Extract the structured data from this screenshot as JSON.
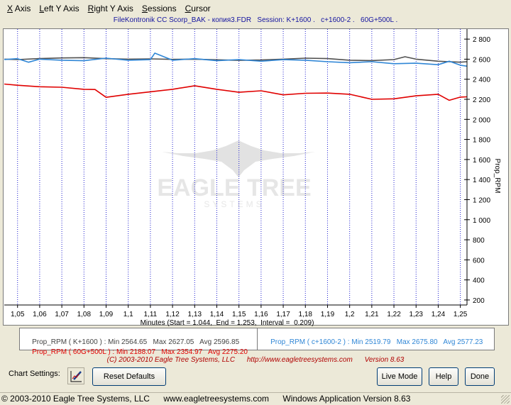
{
  "menu": [
    {
      "label": "X Axis",
      "accel": "X",
      "rest": " Axis"
    },
    {
      "label": "Left Y Axis",
      "accel": "L",
      "rest": "eft Y Axis"
    },
    {
      "label": "Right Y Axis",
      "accel": "R",
      "rest": "ight Y Axis"
    },
    {
      "label": "Sessions",
      "accel": "S",
      "rest": "essions"
    },
    {
      "label": "Cursor",
      "accel": "C",
      "rest": "ursor"
    }
  ],
  "title": "FileKontronik CC Scorp_BAK - копия3.FDR   Session: K+1600 .   c+1600-2 .   60G+500L .",
  "watermark": {
    "line1": "EAGLE TREE",
    "line2": "SYSTEMS"
  },
  "chart_data": {
    "type": "line",
    "title": "FileKontronik CC Scorp_BAK - копия3.FDR   Session: K+1600 .   c+1600-2 .   60G+500L .",
    "xlabel": "Minutes (Start = 1.044,  End = 1.253,  Interval =  0.209)",
    "ylabel": "Prop_RPM",
    "xlim": [
      1.044,
      1.253
    ],
    "ylim": [
      150,
      2900
    ],
    "x_ticks": [
      1.05,
      1.06,
      1.07,
      1.08,
      1.09,
      1.1,
      1.11,
      1.12,
      1.13,
      1.14,
      1.15,
      1.16,
      1.17,
      1.18,
      1.19,
      1.2,
      1.21,
      1.22,
      1.23,
      1.24,
      1.25
    ],
    "x_tick_labels": [
      "1,05",
      "1,06",
      "1,07",
      "1,08",
      "1,09",
      "1,1",
      "1,11",
      "1,12",
      "1,13",
      "1,14",
      "1,15",
      "1,16",
      "1,17",
      "1,18",
      "1,19",
      "1,2",
      "1,21",
      "1,22",
      "1,23",
      "1,24",
      "1,25"
    ],
    "y_ticks": [
      200,
      400,
      600,
      800,
      1000,
      1200,
      1400,
      1600,
      1800,
      2000,
      2200,
      2400,
      2600,
      2800
    ],
    "y_tick_labels": [
      "200",
      "400",
      "600",
      "800",
      "1 000",
      "1 200",
      "1 400",
      "1 600",
      "1 800",
      "2 000",
      "2 200",
      "2 400",
      "2 600",
      "2 800"
    ],
    "y_axis_side": "right",
    "grid": "vertical dotted blue",
    "series": [
      {
        "name": "Prop_RPM ( K+1600 )",
        "color": "#505050",
        "x": [
          1.044,
          1.05,
          1.06,
          1.07,
          1.08,
          1.09,
          1.1,
          1.11,
          1.12,
          1.13,
          1.14,
          1.15,
          1.16,
          1.17,
          1.18,
          1.19,
          1.2,
          1.21,
          1.22,
          1.225,
          1.23,
          1.24,
          1.25,
          1.253
        ],
        "y": [
          2600,
          2596,
          2606,
          2612,
          2615,
          2605,
          2600,
          2603,
          2598,
          2600,
          2594,
          2588,
          2592,
          2600,
          2610,
          2606,
          2590,
          2586,
          2596,
          2624,
          2600,
          2580,
          2570,
          2575
        ]
      },
      {
        "name": "Prop_RPM ( c+1600-2 )",
        "color": "#2f86d6",
        "x": [
          1.044,
          1.05,
          1.055,
          1.06,
          1.07,
          1.08,
          1.09,
          1.1,
          1.11,
          1.112,
          1.12,
          1.13,
          1.14,
          1.15,
          1.16,
          1.17,
          1.18,
          1.19,
          1.2,
          1.21,
          1.22,
          1.23,
          1.24,
          1.245,
          1.25,
          1.253
        ],
        "y": [
          2597,
          2605,
          2570,
          2600,
          2590,
          2585,
          2610,
          2590,
          2595,
          2660,
          2590,
          2605,
          2585,
          2596,
          2580,
          2595,
          2590,
          2575,
          2565,
          2575,
          2555,
          2560,
          2545,
          2580,
          2540,
          2530
        ]
      },
      {
        "name": "Prop_RPM ( 60G+500L )",
        "color": "#e00000",
        "x": [
          1.044,
          1.05,
          1.06,
          1.07,
          1.08,
          1.085,
          1.09,
          1.1,
          1.11,
          1.12,
          1.13,
          1.14,
          1.15,
          1.16,
          1.17,
          1.18,
          1.19,
          1.2,
          1.21,
          1.22,
          1.23,
          1.24,
          1.245,
          1.25,
          1.253
        ],
        "y": [
          2352,
          2340,
          2325,
          2320,
          2300,
          2298,
          2220,
          2250,
          2275,
          2300,
          2335,
          2300,
          2270,
          2285,
          2245,
          2260,
          2262,
          2250,
          2200,
          2205,
          2235,
          2250,
          2190,
          2222,
          2225
        ]
      }
    ]
  },
  "legend": {
    "k1600": {
      "label": "Prop_RPM ( K+1600 )",
      "min": "Min 2564.65",
      "max": "Max 2627.05",
      "avg": "Avg 2596.85",
      "color": "#444444"
    },
    "c1600": {
      "label": "Prop_RPM ( c+1600-2 )",
      "min": "Min 2519.79",
      "max": "Max 2675.80",
      "avg": "Avg 2577.23",
      "color": "#2f86d6"
    },
    "g60": {
      "label": "Prop_RPM ( 60G+500L )",
      "min": "Min 2188.07",
      "max": "Max 2354.97",
      "avg": "Avg 2275.20",
      "color": "#e00000"
    }
  },
  "copyright": {
    "text": "(C) 2003-2010 Eagle Tree Systems, LLC",
    "url": "http://www.eagletreesystems.com",
    "version": "Version 8.63"
  },
  "controls": {
    "chart_settings": "Chart Settings:",
    "reset_defaults": "Reset Defaults",
    "live_mode": "Live Mode",
    "help": "Help",
    "done": "Done"
  },
  "status": {
    "copyright": "© 2003-2010 Eagle Tree Systems, LLC",
    "url": "www.eagletreesystems.com",
    "app": "Windows Application Version 8.63"
  }
}
